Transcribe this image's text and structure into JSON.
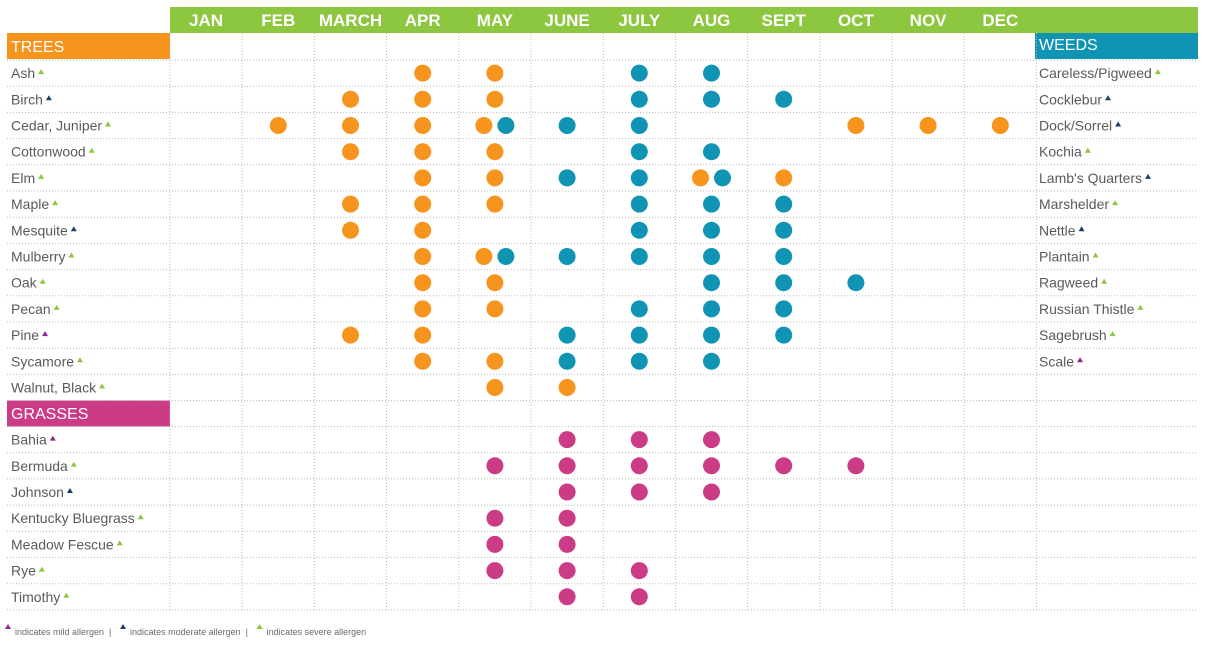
{
  "colors": {
    "header_green": "#8dc63f",
    "trees_orange": "#f7941d",
    "weeds_teal": "#0f95b3",
    "grasses_magenta": "#cc3c86",
    "mild": "#92278f",
    "moderate": "#1c3f6e",
    "severe": "#8dc63f",
    "grid": "#b9b9b9",
    "text": "#5a5a5a"
  },
  "chart_data": {
    "type": "table",
    "title": "",
    "months": [
      "JAN",
      "FEB",
      "MARCH",
      "APR",
      "MAY",
      "JUNE",
      "JULY",
      "AUG",
      "SEPT",
      "OCT",
      "NOV",
      "DEC"
    ],
    "sections": {
      "trees": "TREES",
      "grasses": "GRASSES",
      "weeds": "WEEDS"
    },
    "rows": [
      {
        "tree": "Ash",
        "tree_level": "severe",
        "weed": "Careless/Pigweed",
        "weed_level": "severe",
        "trees_months": [
          4,
          5
        ],
        "weeds_months": [
          7,
          8
        ]
      },
      {
        "tree": "Birch",
        "tree_level": "moderate",
        "weed": "Cocklebur",
        "weed_level": "moderate",
        "trees_months": [
          3,
          4,
          5
        ],
        "weeds_months": [
          7,
          8,
          9
        ]
      },
      {
        "tree": "Cedar, Juniper",
        "tree_level": "severe",
        "weed": "Dock/Sorrel",
        "weed_level": "moderate",
        "trees_months": [
          2,
          3,
          4,
          5,
          10,
          11,
          12
        ],
        "weeds_months": [
          5,
          6,
          7
        ]
      },
      {
        "tree": "Cottonwood",
        "tree_level": "severe",
        "weed": "Kochia",
        "weed_level": "severe",
        "trees_months": [
          3,
          4,
          5
        ],
        "weeds_months": [
          7,
          8
        ]
      },
      {
        "tree": "Elm",
        "tree_level": "severe",
        "weed": "Lamb's Quarters",
        "weed_level": "moderate",
        "trees_months": [
          4,
          5,
          8,
          9
        ],
        "weeds_months": [
          6,
          7,
          8
        ]
      },
      {
        "tree": "Maple",
        "tree_level": "severe",
        "weed": "Marshelder",
        "weed_level": "severe",
        "trees_months": [
          3,
          4,
          5
        ],
        "weeds_months": [
          7,
          8,
          9
        ]
      },
      {
        "tree": "Mesquite",
        "tree_level": "moderate",
        "weed": "Nettle",
        "weed_level": "moderate",
        "trees_months": [
          3,
          4
        ],
        "weeds_months": [
          7,
          8,
          9
        ]
      },
      {
        "tree": "Mulberry",
        "tree_level": "severe",
        "weed": "Plantain",
        "weed_level": "severe",
        "trees_months": [
          4,
          5
        ],
        "weeds_months": [
          5,
          6,
          7,
          8,
          9
        ]
      },
      {
        "tree": "Oak",
        "tree_level": "severe",
        "weed": "Ragweed",
        "weed_level": "severe",
        "trees_months": [
          4,
          5
        ],
        "weeds_months": [
          8,
          9,
          10
        ]
      },
      {
        "tree": "Pecan",
        "tree_level": "severe",
        "weed": "Russian Thistle",
        "weed_level": "severe",
        "trees_months": [
          4,
          5
        ],
        "weeds_months": [
          7,
          8,
          9
        ]
      },
      {
        "tree": "Pine",
        "tree_level": "mild",
        "weed": "Sagebrush",
        "weed_level": "severe",
        "trees_months": [
          3,
          4
        ],
        "weeds_months": [
          6,
          7,
          8,
          9
        ]
      },
      {
        "tree": "Sycamore",
        "tree_level": "severe",
        "weed": "Scale",
        "weed_level": "mild",
        "trees_months": [
          4,
          5
        ],
        "weeds_months": [
          6,
          7,
          8
        ]
      },
      {
        "tree": "Walnut, Black",
        "tree_level": "severe",
        "weed": "",
        "weed_level": "",
        "trees_months": [
          5,
          6
        ],
        "weeds_months": []
      }
    ],
    "grasses": [
      {
        "name": "Bahia",
        "level": "mild",
        "months": [
          6,
          7,
          8
        ]
      },
      {
        "name": "Bermuda",
        "level": "severe",
        "months": [
          5,
          6,
          7,
          8,
          9,
          10
        ]
      },
      {
        "name": "Johnson",
        "level": "moderate",
        "months": [
          6,
          7,
          8
        ]
      },
      {
        "name": "Kentucky Bluegrass",
        "level": "severe",
        "months": [
          5,
          6
        ]
      },
      {
        "name": "Meadow Fescue",
        "level": "severe",
        "months": [
          5,
          6
        ]
      },
      {
        "name": "Rye",
        "level": "severe",
        "months": [
          5,
          6,
          7
        ]
      },
      {
        "name": "Timothy",
        "level": "severe",
        "months": [
          6,
          7
        ]
      }
    ],
    "legend": [
      {
        "level": "mild",
        "text": "indicates mild allergen"
      },
      {
        "level": "moderate",
        "text": "indicates moderate allergen"
      },
      {
        "level": "severe",
        "text": "indicates severe allergen"
      }
    ],
    "legend_separator": "|"
  }
}
